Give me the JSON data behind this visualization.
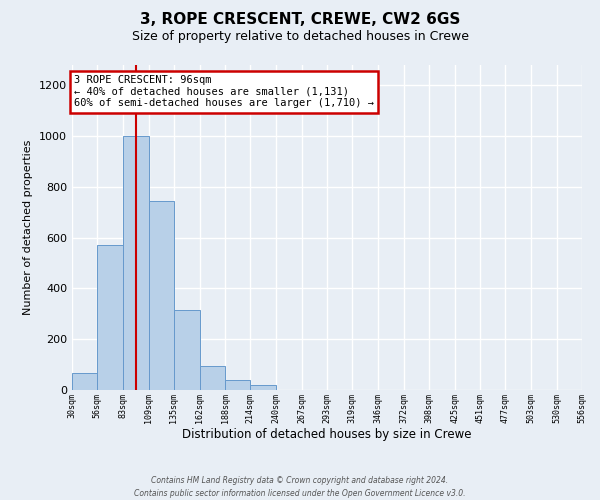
{
  "title": "3, ROPE CRESCENT, CREWE, CW2 6GS",
  "subtitle": "Size of property relative to detached houses in Crewe",
  "xlabel": "Distribution of detached houses by size in Crewe",
  "ylabel": "Number of detached properties",
  "bar_color": "#b8d0e8",
  "bar_edge_color": "#6699cc",
  "background_color": "#e8eef5",
  "grid_color": "#ffffff",
  "property_value": 96,
  "vline_color": "#cc0000",
  "annotation_line1": "3 ROPE CRESCENT: 96sqm",
  "annotation_line2": "← 40% of detached houses are smaller (1,131)",
  "annotation_line3": "60% of semi-detached houses are larger (1,710) →",
  "annotation_box_color": "#cc0000",
  "footnote1": "Contains HM Land Registry data © Crown copyright and database right 2024.",
  "footnote2": "Contains public sector information licensed under the Open Government Licence v3.0.",
  "bin_edges": [
    30,
    56,
    83,
    109,
    135,
    162,
    188,
    214,
    240,
    267,
    293,
    319,
    346,
    372,
    398,
    425,
    451,
    477,
    503,
    530,
    556
  ],
  "bin_counts": [
    65,
    570,
    1000,
    745,
    315,
    95,
    40,
    20,
    0,
    0,
    0,
    0,
    0,
    0,
    0,
    0,
    0,
    0,
    0,
    0
  ],
  "ylim": [
    0,
    1280
  ],
  "tick_labels": [
    "30sqm",
    "56sqm",
    "83sqm",
    "109sqm",
    "135sqm",
    "162sqm",
    "188sqm",
    "214sqm",
    "240sqm",
    "267sqm",
    "293sqm",
    "319sqm",
    "346sqm",
    "372sqm",
    "398sqm",
    "425sqm",
    "451sqm",
    "477sqm",
    "503sqm",
    "530sqm",
    "556sqm"
  ]
}
